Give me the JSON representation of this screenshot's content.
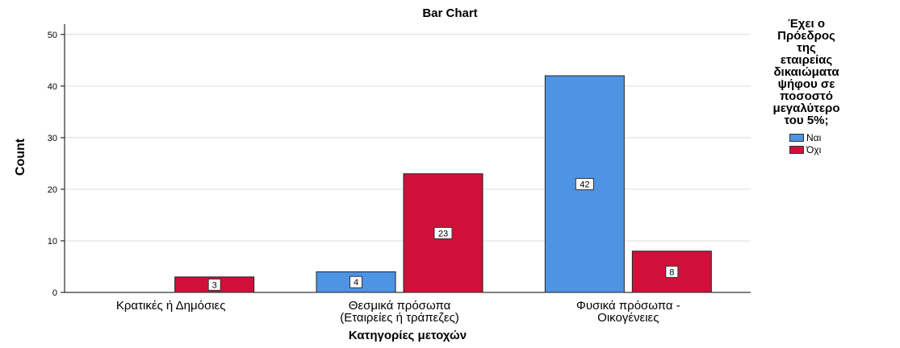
{
  "chart_data": {
    "type": "bar",
    "title": "Bar Chart",
    "xlabel": "Κατηγορίες μετοχών",
    "ylabel": "Count",
    "ylim": [
      0,
      52
    ],
    "yticks": [
      0,
      10,
      20,
      30,
      40,
      50
    ],
    "grid": true,
    "legend_position": "right",
    "categories": [
      "Κρατικές ή Δημόσιες",
      "Θεσμικά πρόσωπα\n(Εταιρείες ή τράπεζες)",
      "Φυσικά πρόσωπα -\nΟικογένειες"
    ],
    "legend_title": "Έχει ο\nΠρόεδρος\nτης\nεταιρείας\nδικαιώματα\nψήφου σε\nποσοστό\nμεγαλύτερο\nτου 5%;",
    "series": [
      {
        "name": "Ναι",
        "color": "#4e93e4",
        "values": [
          0,
          4,
          42
        ]
      },
      {
        "name": "Όχι",
        "color": "#d0103a",
        "values": [
          3,
          23,
          8
        ]
      }
    ]
  }
}
